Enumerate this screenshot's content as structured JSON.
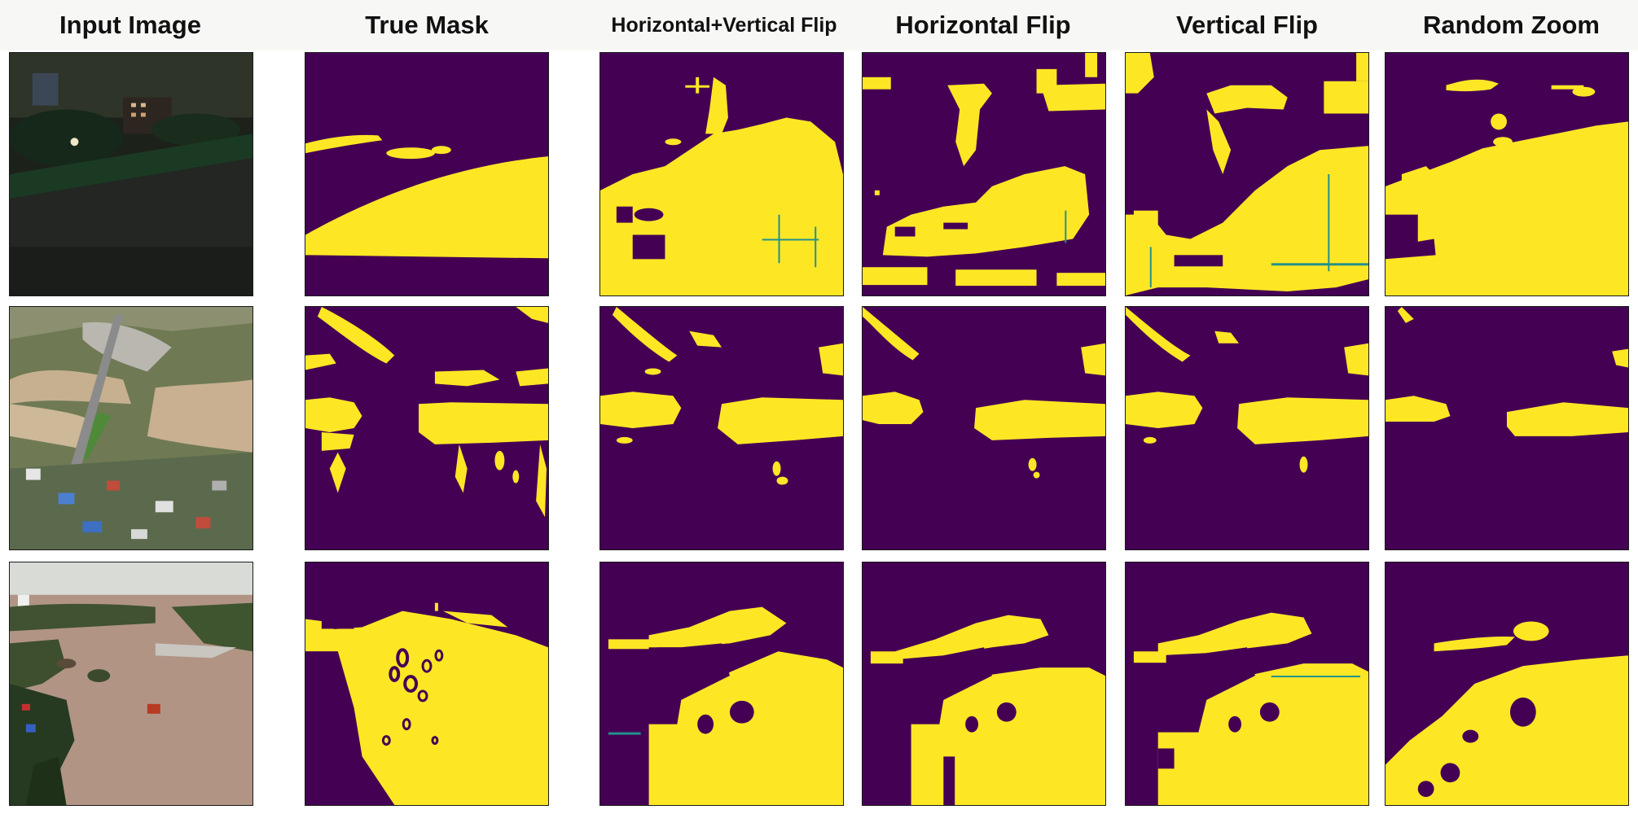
{
  "figure": {
    "columns": [
      {
        "label": "Input Image"
      },
      {
        "label": "True Mask"
      },
      {
        "label": "Horizontal+Vertical Flip"
      },
      {
        "label": "Horizontal Flip"
      },
      {
        "label": "Vertical Flip"
      },
      {
        "label": "Random Zoom"
      }
    ],
    "rows": [
      {
        "scene": "night-flooded-street"
      },
      {
        "scene": "aerial-flooded-town"
      },
      {
        "scene": "flooded-river-valley"
      }
    ],
    "mask_colors": {
      "background": "#440154",
      "water": "#fde725",
      "edge": "#21918c"
    }
  }
}
